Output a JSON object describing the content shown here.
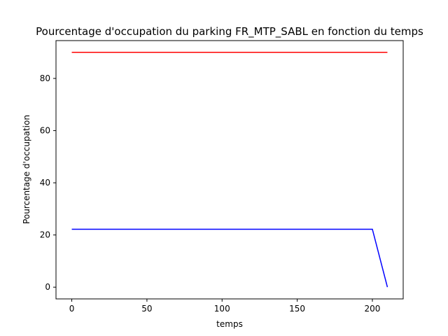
{
  "chart_data": {
    "type": "line",
    "title": "Pourcentage d'occupation du parking FR_MTP_SABL en fonction du temps",
    "xlabel": "temps",
    "ylabel": "Pourcentage d'occupation",
    "xlim": [
      -10.5,
      220.5
    ],
    "ylim": [
      -4.5,
      94.5
    ],
    "xticks": [
      0,
      50,
      100,
      150,
      200
    ],
    "yticks": [
      0,
      20,
      40,
      60,
      80
    ],
    "grid": false,
    "legend": "none",
    "series": [
      {
        "color": "#ff0000",
        "x": [
          0,
          210
        ],
        "y": [
          90,
          90
        ]
      },
      {
        "color": "#0000ff",
        "x": [
          0,
          200,
          210
        ],
        "y": [
          22.2,
          22.2,
          0
        ]
      }
    ]
  }
}
